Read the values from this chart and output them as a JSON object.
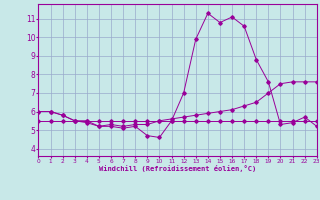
{
  "xlabel": "Windchill (Refroidissement éolien,°C)",
  "x": [
    0,
    1,
    2,
    3,
    4,
    5,
    6,
    7,
    8,
    9,
    10,
    11,
    12,
    13,
    14,
    15,
    16,
    17,
    18,
    19,
    20,
    21,
    22,
    23
  ],
  "line1": [
    6.0,
    6.0,
    5.8,
    5.5,
    5.5,
    5.2,
    5.2,
    5.1,
    5.2,
    4.7,
    4.6,
    5.5,
    7.0,
    9.9,
    11.3,
    10.8,
    11.1,
    10.6,
    8.8,
    7.6,
    5.3,
    5.4,
    5.7,
    5.2
  ],
  "line2": [
    6.0,
    6.0,
    5.8,
    5.5,
    5.4,
    5.2,
    5.3,
    5.2,
    5.3,
    5.3,
    5.5,
    5.6,
    5.7,
    5.8,
    5.9,
    6.0,
    6.1,
    6.3,
    6.5,
    7.0,
    7.5,
    7.6,
    7.6,
    7.6
  ],
  "line3": [
    5.5,
    5.5,
    5.5,
    5.5,
    5.5,
    5.5,
    5.5,
    5.5,
    5.5,
    5.5,
    5.5,
    5.5,
    5.5,
    5.5,
    5.5,
    5.5,
    5.5,
    5.5,
    5.5,
    5.5,
    5.5,
    5.5,
    5.5,
    5.5
  ],
  "line_color": "#990099",
  "bg_color": "#c8e8e8",
  "grid_color": "#99aacc",
  "xlim": [
    0,
    23
  ],
  "ylim": [
    3.6,
    11.8
  ],
  "yticks": [
    4,
    5,
    6,
    7,
    8,
    9,
    10,
    11
  ],
  "xticks": [
    0,
    1,
    2,
    3,
    4,
    5,
    6,
    7,
    8,
    9,
    10,
    11,
    12,
    13,
    14,
    15,
    16,
    17,
    18,
    19,
    20,
    21,
    22,
    23
  ]
}
